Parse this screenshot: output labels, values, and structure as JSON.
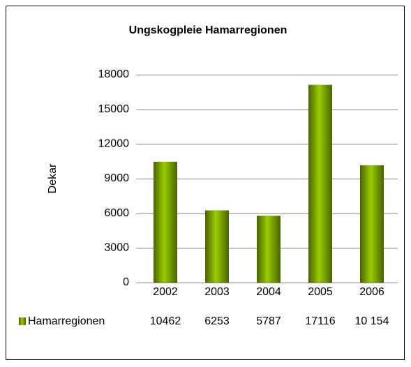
{
  "chart_data": {
    "type": "bar",
    "title": "Ungskogpleie Hamarregionen",
    "y_label": "Dekar",
    "categories": [
      "2002",
      "2003",
      "2004",
      "2005",
      "2006"
    ],
    "series": [
      {
        "name": "Hamarregionen",
        "color": "#99cc00",
        "values": [
          10462,
          6253,
          5787,
          17116,
          10154
        ],
        "value_labels": [
          "10462",
          "6253",
          "5787",
          "17116",
          "10 154"
        ]
      }
    ],
    "ylim": [
      0,
      18000
    ],
    "yticks": [
      0,
      3000,
      6000,
      9000,
      12000,
      15000,
      18000
    ],
    "grid": true
  }
}
